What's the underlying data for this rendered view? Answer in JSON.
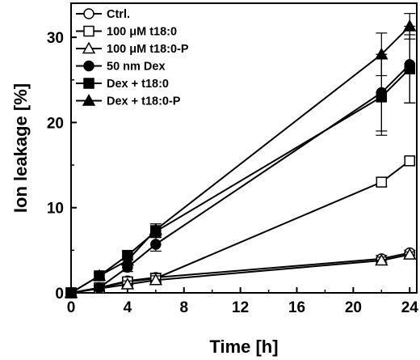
{
  "chart_data": {
    "type": "line",
    "title": "",
    "xlabel": "Time [h]",
    "ylabel": "Ion leakage [%]",
    "xlim": [
      0,
      24.5
    ],
    "ylim": [
      0,
      34
    ],
    "x_ticks": [
      0,
      4,
      8,
      12,
      16,
      20,
      24
    ],
    "y_ticks": [
      0,
      10,
      20,
      30
    ],
    "grid": false,
    "legend_position": "top-left",
    "series": [
      {
        "name": "Ctrl.",
        "marker": "circle-open",
        "x": [
          0,
          2,
          4,
          6,
          22,
          24
        ],
        "y": [
          0,
          0.6,
          1.4,
          1.8,
          4.0,
          4.7
        ],
        "err": [
          0,
          0.3,
          0.4,
          0.5,
          0.4,
          0.3
        ]
      },
      {
        "name": "100 μM t18:0",
        "marker": "square-open",
        "x": [
          0,
          2,
          4,
          6,
          22,
          24
        ],
        "y": [
          0,
          0.6,
          1.3,
          1.7,
          13.0,
          15.5
        ],
        "err": [
          0,
          0.3,
          0.4,
          0.5,
          0.5,
          0.4
        ]
      },
      {
        "name": "100 μM t18:0-P",
        "marker": "triangle-open",
        "x": [
          0,
          2,
          4,
          6,
          22,
          24
        ],
        "y": [
          0,
          0.5,
          1.0,
          1.5,
          3.8,
          4.5
        ],
        "err": [
          0,
          0.3,
          0.4,
          0.5,
          0.4,
          0.3
        ]
      },
      {
        "name": "50 nm Dex",
        "marker": "circle-filled",
        "x": [
          0,
          2,
          4,
          6,
          22,
          24
        ],
        "y": [
          0,
          0.6,
          3.0,
          5.7,
          23.5,
          26.8
        ],
        "err": [
          0,
          0.3,
          0.5,
          0.8,
          4.5,
          4.5
        ]
      },
      {
        "name": "Dex + t18:0",
        "marker": "square-filled",
        "x": [
          0,
          2,
          4,
          6,
          22,
          24
        ],
        "y": [
          0,
          2.0,
          4.4,
          7.2,
          23.0,
          26.3
        ],
        "err": [
          0,
          0.3,
          0.5,
          0.7,
          4.5,
          4.0
        ]
      },
      {
        "name": "Dex + t18:0-P",
        "marker": "triangle-filled",
        "x": [
          0,
          2,
          4,
          6,
          22,
          24
        ],
        "y": [
          0,
          2.0,
          3.8,
          7.4,
          28.0,
          31.3
        ],
        "err": [
          0,
          0.3,
          0.5,
          0.7,
          2.5,
          1.5
        ]
      }
    ]
  }
}
